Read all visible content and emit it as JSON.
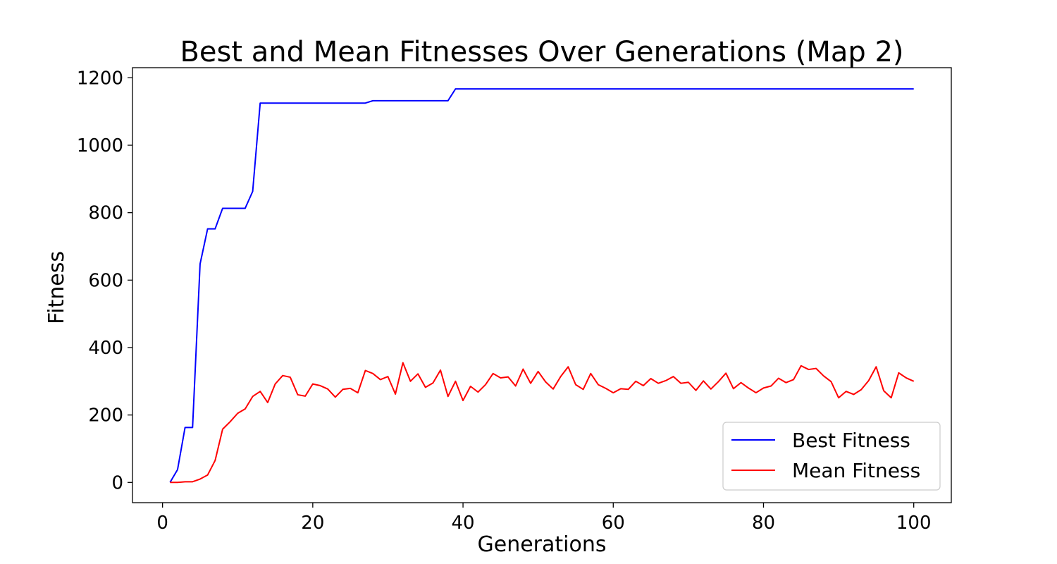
{
  "chart_data": {
    "type": "line",
    "title": "Best and Mean Fitnesses Over Generations (Map 2)",
    "xlabel": "Generations",
    "ylabel": "Fitness",
    "xlim": [
      -4,
      105
    ],
    "ylim": [
      -60,
      1230
    ],
    "x_ticks": [
      0,
      20,
      40,
      60,
      80,
      100
    ],
    "y_ticks": [
      0,
      200,
      400,
      600,
      800,
      1000,
      1200
    ],
    "grid": false,
    "legend_position": "lower-right",
    "x": [
      1,
      2,
      3,
      4,
      5,
      6,
      7,
      8,
      9,
      10,
      11,
      12,
      13,
      14,
      15,
      16,
      17,
      18,
      19,
      20,
      21,
      22,
      23,
      24,
      25,
      26,
      27,
      28,
      29,
      30,
      31,
      32,
      33,
      34,
      35,
      36,
      37,
      38,
      39,
      40,
      41,
      42,
      43,
      44,
      45,
      46,
      47,
      48,
      49,
      50,
      51,
      52,
      53,
      54,
      55,
      56,
      57,
      58,
      59,
      60,
      61,
      62,
      63,
      64,
      65,
      66,
      67,
      68,
      69,
      70,
      71,
      72,
      73,
      74,
      75,
      76,
      77,
      78,
      79,
      80,
      81,
      82,
      83,
      84,
      85,
      86,
      87,
      88,
      89,
      90,
      91,
      92,
      93,
      94,
      95,
      96,
      97,
      98,
      99,
      100
    ],
    "series": [
      {
        "name": "Best Fitness",
        "color": "#0000ff",
        "values": [
          0,
          38,
          163,
          163,
          648,
          752,
          752,
          813,
          813,
          813,
          813,
          863,
          1125,
          1125,
          1125,
          1125,
          1125,
          1125,
          1125,
          1125,
          1125,
          1125,
          1125,
          1125,
          1125,
          1125,
          1125,
          1132,
          1132,
          1132,
          1132,
          1132,
          1132,
          1132,
          1132,
          1132,
          1132,
          1132,
          1167,
          1167,
          1167,
          1167,
          1167,
          1167,
          1167,
          1167,
          1167,
          1167,
          1167,
          1167,
          1167,
          1167,
          1167,
          1167,
          1167,
          1167,
          1167,
          1167,
          1167,
          1167,
          1167,
          1167,
          1167,
          1167,
          1167,
          1167,
          1167,
          1167,
          1167,
          1167,
          1167,
          1167,
          1167,
          1167,
          1167,
          1167,
          1167,
          1167,
          1167,
          1167,
          1167,
          1167,
          1167,
          1167,
          1167,
          1167,
          1167,
          1167,
          1167,
          1167,
          1167,
          1167,
          1167,
          1167,
          1167,
          1167,
          1167,
          1167,
          1167,
          1167
        ]
      },
      {
        "name": "Mean Fitness",
        "color": "#ff0000",
        "values": [
          0,
          0,
          2,
          2,
          10,
          22,
          65,
          158,
          180,
          205,
          218,
          255,
          270,
          237,
          292,
          317,
          312,
          260,
          256,
          292,
          287,
          277,
          253,
          276,
          279,
          266,
          332,
          323,
          305,
          314,
          262,
          355,
          300,
          322,
          282,
          295,
          333,
          255,
          300,
          243,
          285,
          268,
          290,
          323,
          310,
          313,
          286,
          336,
          294,
          329,
          298,
          277,
          314,
          343,
          290,
          276,
          323,
          290,
          279,
          266,
          278,
          276,
          300,
          287,
          308,
          294,
          302,
          314,
          294,
          297,
          273,
          301,
          277,
          299,
          324,
          278,
          296,
          280,
          266,
          280,
          286,
          309,
          296,
          305,
          346,
          335,
          338,
          316,
          299,
          251,
          270,
          261,
          275,
          302,
          343,
          272,
          251,
          325,
          310,
          300
        ]
      }
    ]
  }
}
